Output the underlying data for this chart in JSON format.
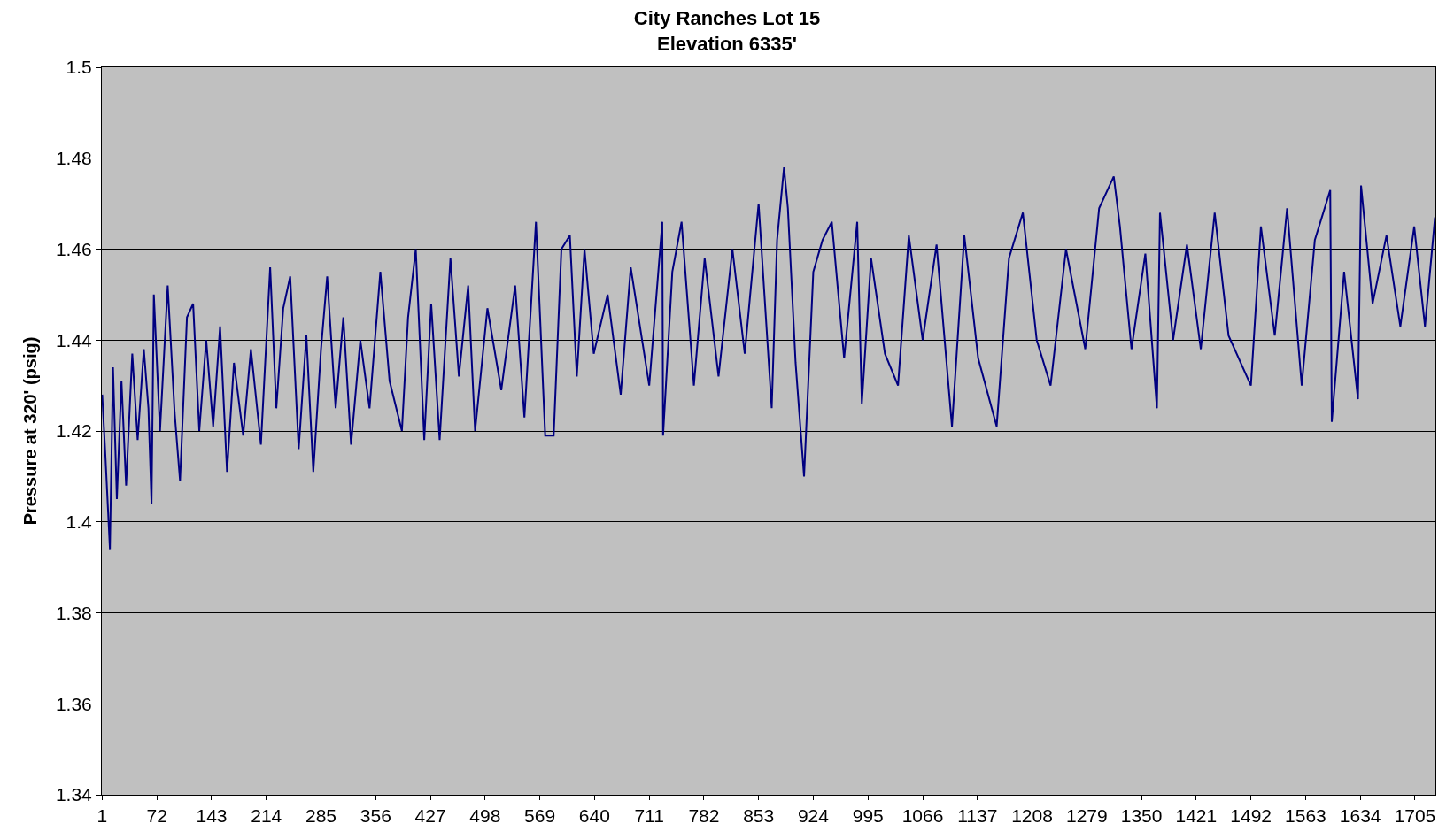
{
  "chart_data": {
    "type": "line",
    "title": "City Ranches Lot 15\nElevation 6335'",
    "ylabel": "Pressure at 320' (psig)",
    "xlim": [
      0.5,
      1731.5
    ],
    "xticks": [
      1,
      72,
      143,
      214,
      285,
      356,
      427,
      498,
      569,
      640,
      711,
      782,
      853,
      924,
      995,
      1066,
      1137,
      1208,
      1279,
      1350,
      1421,
      1492,
      1563,
      1634,
      1705
    ],
    "ylim": [
      1.34,
      1.5
    ],
    "yticks": [
      1.34,
      1.36,
      1.38,
      1.4,
      1.42,
      1.44,
      1.46,
      1.48,
      1.5
    ],
    "grid": "y",
    "series": [
      {
        "color": "#000080",
        "x": [
          1,
          5,
          11,
          15,
          20,
          26,
          32,
          40,
          47,
          55,
          61,
          65,
          68,
          76,
          86,
          95,
          102,
          111,
          119,
          127,
          136,
          145,
          154,
          163,
          172,
          184,
          194,
          207,
          219,
          227,
          236,
          245,
          256,
          266,
          275,
          285,
          293,
          304,
          314,
          324,
          336,
          348,
          362,
          374,
          390,
          398,
          408,
          419,
          428,
          439,
          453,
          464,
          476,
          485,
          501,
          519,
          537,
          549,
          564,
          576,
          587,
          597,
          608,
          617,
          627,
          639,
          657,
          674,
          687,
          711,
          728,
          729,
          741,
          753,
          769,
          783,
          801,
          819,
          835,
          853,
          870,
          877,
          886,
          891,
          901,
          912,
          924,
          936,
          948,
          964,
          981,
          987,
          999,
          1017,
          1034,
          1048,
          1066,
          1084,
          1104,
          1120,
          1138,
          1162,
          1178,
          1196,
          1214,
          1232,
          1252,
          1277,
          1295,
          1314,
          1322,
          1337,
          1355,
          1370,
          1374,
          1391,
          1409,
          1427,
          1445,
          1463,
          1492,
          1505,
          1523,
          1539,
          1558,
          1575,
          1595,
          1597,
          1613,
          1631,
          1635,
          1650,
          1668,
          1686,
          1704,
          1718,
          1731
        ],
        "values": [
          1.428,
          1.415,
          1.394,
          1.434,
          1.405,
          1.431,
          1.408,
          1.437,
          1.418,
          1.438,
          1.425,
          1.404,
          1.45,
          1.42,
          1.452,
          1.424,
          1.409,
          1.445,
          1.448,
          1.42,
          1.44,
          1.421,
          1.443,
          1.411,
          1.435,
          1.419,
          1.438,
          1.417,
          1.456,
          1.425,
          1.447,
          1.454,
          1.416,
          1.441,
          1.411,
          1.438,
          1.454,
          1.425,
          1.445,
          1.417,
          1.44,
          1.425,
          1.455,
          1.431,
          1.42,
          1.445,
          1.46,
          1.418,
          1.448,
          1.418,
          1.458,
          1.432,
          1.452,
          1.42,
          1.447,
          1.429,
          1.452,
          1.423,
          1.466,
          1.419,
          1.419,
          1.46,
          1.463,
          1.432,
          1.46,
          1.437,
          1.45,
          1.428,
          1.456,
          1.43,
          1.466,
          1.419,
          1.455,
          1.466,
          1.43,
          1.458,
          1.432,
          1.46,
          1.437,
          1.47,
          1.425,
          1.462,
          1.478,
          1.469,
          1.435,
          1.41,
          1.455,
          1.462,
          1.466,
          1.436,
          1.466,
          1.426,
          1.458,
          1.437,
          1.43,
          1.463,
          1.44,
          1.461,
          1.421,
          1.463,
          1.436,
          1.421,
          1.458,
          1.468,
          1.44,
          1.43,
          1.46,
          1.438,
          1.469,
          1.476,
          1.465,
          1.438,
          1.459,
          1.425,
          1.468,
          1.44,
          1.461,
          1.438,
          1.468,
          1.441,
          1.43,
          1.465,
          1.441,
          1.469,
          1.43,
          1.462,
          1.473,
          1.422,
          1.455,
          1.427,
          1.474,
          1.448,
          1.463,
          1.443,
          1.465,
          1.443,
          1.467
        ]
      }
    ]
  }
}
